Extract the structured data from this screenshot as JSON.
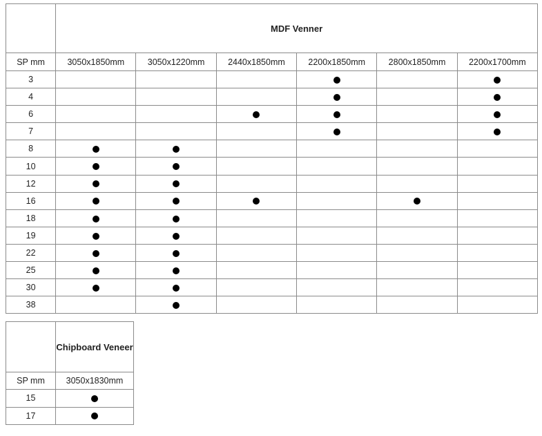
{
  "tables": [
    {
      "title": "MDF Venner",
      "row_header": "SP mm",
      "columns": [
        "3050x1850mm",
        "3050x1220mm",
        "2440x1850mm",
        "2200x1850mm",
        "2800x1850mm",
        "2200x1700mm"
      ],
      "rows": [
        {
          "sp": "3",
          "marks": [
            false,
            false,
            false,
            true,
            false,
            true
          ]
        },
        {
          "sp": "4",
          "marks": [
            false,
            false,
            false,
            true,
            false,
            true
          ]
        },
        {
          "sp": "6",
          "marks": [
            false,
            false,
            true,
            true,
            false,
            true
          ]
        },
        {
          "sp": "7",
          "marks": [
            false,
            false,
            false,
            true,
            false,
            true
          ]
        },
        {
          "sp": "8",
          "marks": [
            true,
            true,
            false,
            false,
            false,
            false
          ]
        },
        {
          "sp": "10",
          "marks": [
            true,
            true,
            false,
            false,
            false,
            false
          ]
        },
        {
          "sp": "12",
          "marks": [
            true,
            true,
            false,
            false,
            false,
            false
          ]
        },
        {
          "sp": "16",
          "marks": [
            true,
            true,
            true,
            false,
            true,
            false
          ]
        },
        {
          "sp": "18",
          "marks": [
            true,
            true,
            false,
            false,
            false,
            false
          ]
        },
        {
          "sp": "19",
          "marks": [
            true,
            true,
            false,
            false,
            false,
            false
          ]
        },
        {
          "sp": "22",
          "marks": [
            true,
            true,
            false,
            false,
            false,
            false
          ]
        },
        {
          "sp": "25",
          "marks": [
            true,
            true,
            false,
            false,
            false,
            false
          ]
        },
        {
          "sp": "30",
          "marks": [
            true,
            true,
            false,
            false,
            false,
            false
          ]
        },
        {
          "sp": "38",
          "marks": [
            false,
            true,
            false,
            false,
            false,
            false
          ]
        }
      ]
    },
    {
      "title": "Chipboard Veneer",
      "row_header": "SP mm",
      "columns": [
        "3050x1830mm"
      ],
      "rows": [
        {
          "sp": "15",
          "marks": [
            true
          ]
        },
        {
          "sp": "17",
          "marks": [
            true
          ]
        }
      ]
    }
  ]
}
